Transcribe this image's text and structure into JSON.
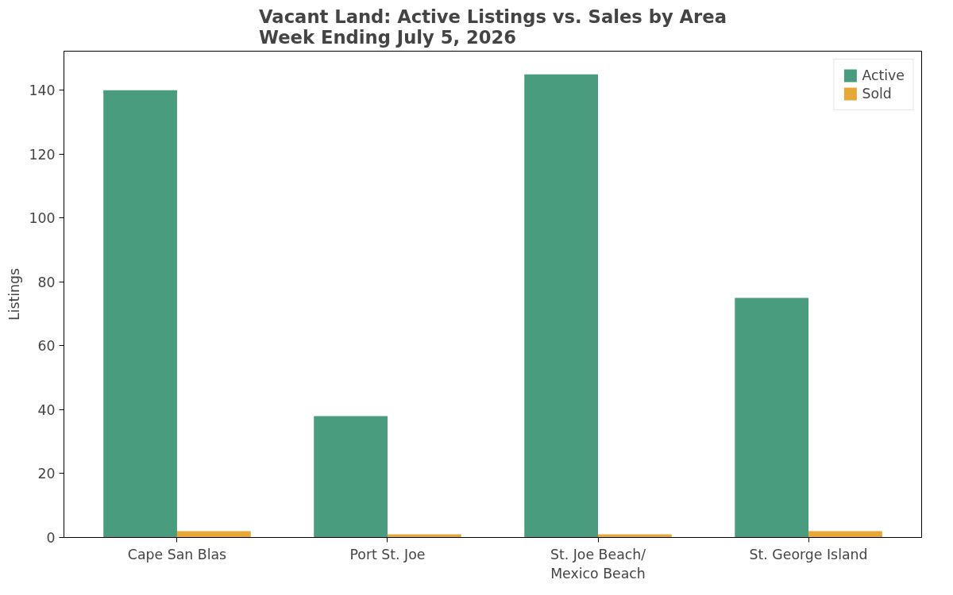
{
  "chart_data": {
    "type": "bar",
    "title": "Vacant Land: Active Listings vs. Sales by Area\nWeek Ending July 5, 2026",
    "ylabel": "Listings",
    "categories": [
      "Cape San Blas",
      "Port St. Joe",
      "St. Joe Beach/\nMexico Beach",
      "St. George Island"
    ],
    "series": [
      {
        "name": "Active",
        "color": "#4a9c7e",
        "values": [
          140,
          38,
          145,
          75
        ]
      },
      {
        "name": "Sold",
        "color": "#e8a838",
        "values": [
          2,
          1,
          1,
          2
        ]
      }
    ],
    "ylim": [
      0,
      152.25
    ],
    "yticks": [
      0,
      20,
      40,
      60,
      80,
      100,
      120,
      140
    ],
    "grid": false,
    "legend": "top right"
  }
}
